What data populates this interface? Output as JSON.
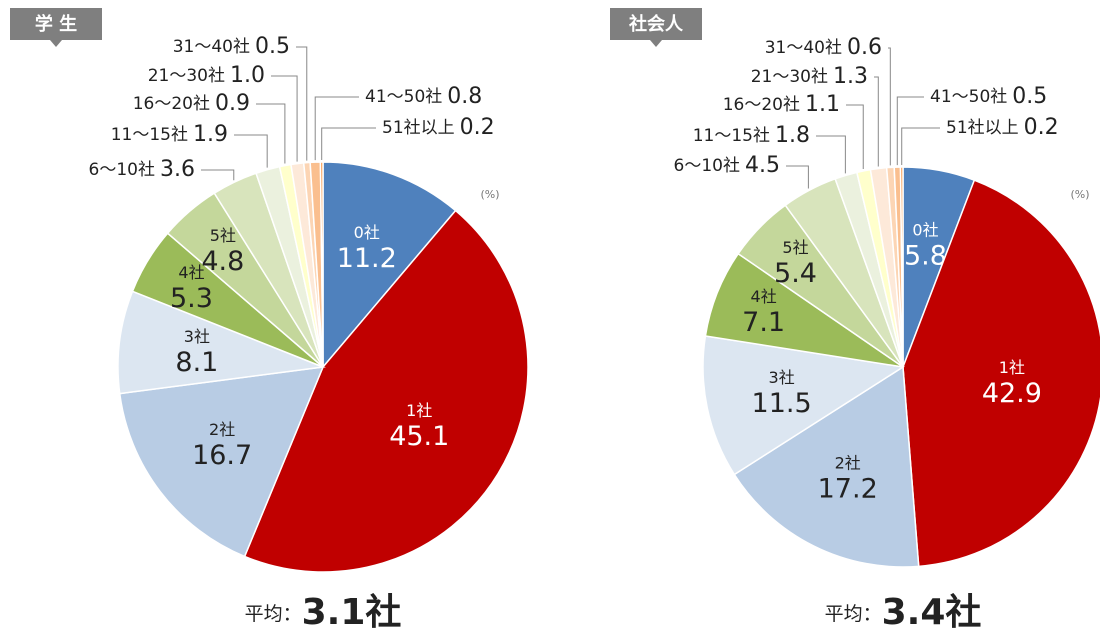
{
  "chart_data": [
    {
      "type": "pie",
      "title": "学 生",
      "unit": "(%)",
      "average_label": "平均：",
      "average": "3.1社",
      "categories": [
        "0社",
        "1社",
        "2社",
        "3社",
        "4社",
        "5社",
        "6〜10社",
        "11〜15社",
        "16〜20社",
        "21〜30社",
        "31〜40社",
        "41〜50社",
        "51社以上"
      ],
      "values": [
        11.2,
        45.1,
        16.7,
        8.1,
        5.3,
        4.8,
        3.6,
        1.9,
        0.9,
        1.0,
        0.5,
        0.8,
        0.2
      ],
      "value_labels": [
        "11.2",
        "45.1",
        "16.7",
        "8.1",
        "5.3",
        "4.8",
        "3.6",
        "1.9",
        "0.9",
        "1.0",
        "0.5",
        "0.8",
        "0.2"
      ],
      "colors": [
        "#4f81bd",
        "#c00000",
        "#b8cce4",
        "#dce6f1",
        "#9bbb59",
        "#c4d79b",
        "#d8e4bc",
        "#ebf1de",
        "#ffffcc",
        "#fde9d9",
        "#fcd5b4",
        "#fabf8f",
        "#f79646"
      ]
    },
    {
      "type": "pie",
      "title": "社会人",
      "unit": "(%)",
      "average_label": "平均：",
      "average": "3.4社",
      "categories": [
        "0社",
        "1社",
        "2社",
        "3社",
        "4社",
        "5社",
        "6〜10社",
        "11〜15社",
        "16〜20社",
        "21〜30社",
        "31〜40社",
        "41〜50社",
        "51社以上"
      ],
      "values": [
        5.8,
        42.9,
        17.2,
        11.5,
        7.1,
        5.4,
        4.5,
        1.8,
        1.1,
        1.3,
        0.6,
        0.5,
        0.2
      ],
      "value_labels": [
        "5.8",
        "42.9",
        "17.2",
        "11.5",
        "7.1",
        "5.4",
        "4.5",
        "1.8",
        "1.1",
        "1.3",
        "0.6",
        "0.5",
        "0.2"
      ],
      "colors": [
        "#4f81bd",
        "#c00000",
        "#b8cce4",
        "#dce6f1",
        "#9bbb59",
        "#c4d79b",
        "#d8e4bc",
        "#ebf1de",
        "#ffffcc",
        "#fde9d9",
        "#fcd5b4",
        "#fabf8f",
        "#f79646"
      ]
    }
  ]
}
